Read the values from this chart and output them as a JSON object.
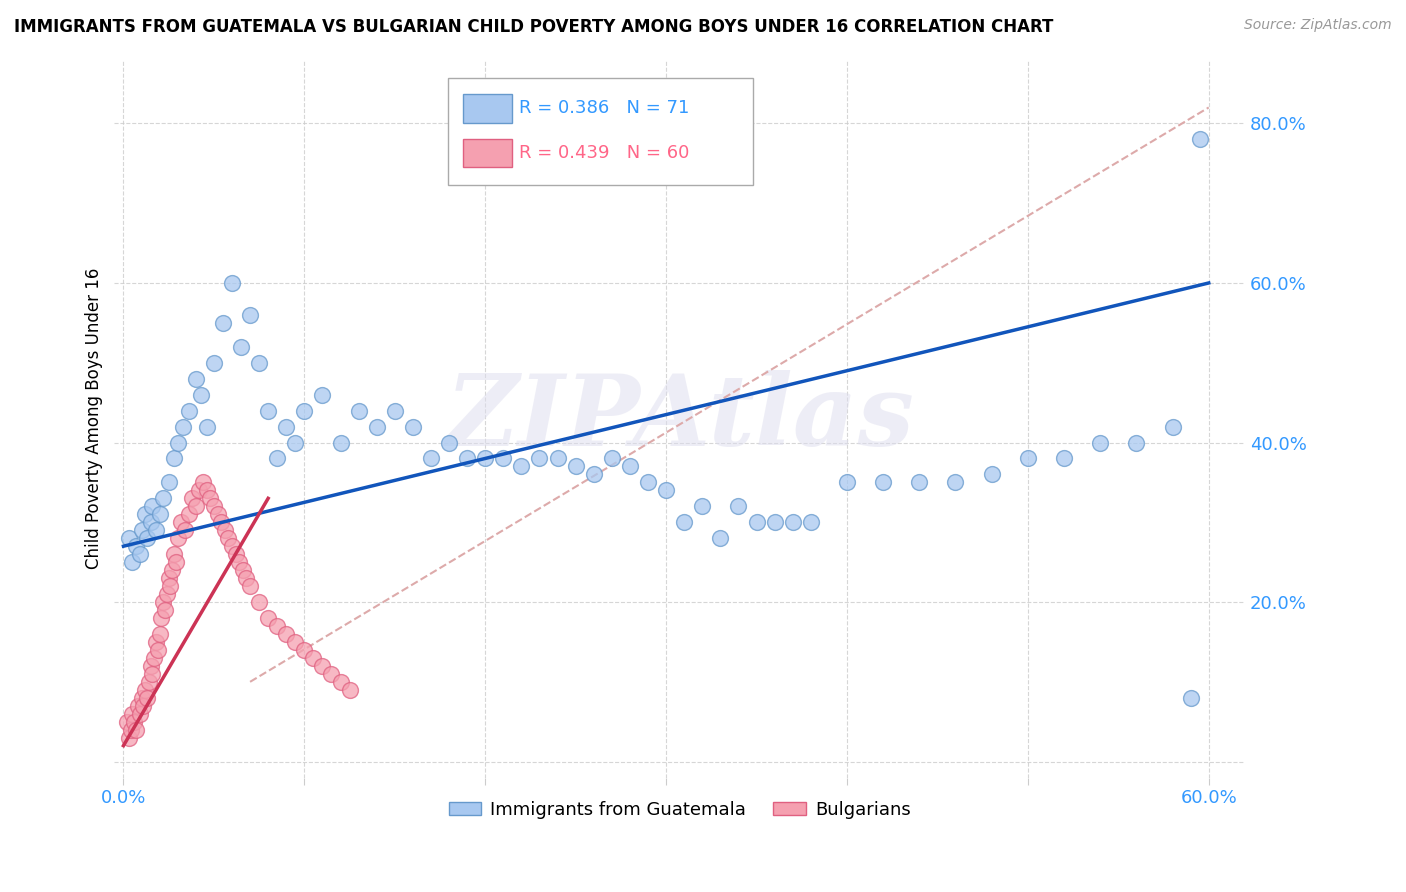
{
  "title": "IMMIGRANTS FROM GUATEMALA VS BULGARIAN CHILD POVERTY AMONG BOYS UNDER 16 CORRELATION CHART",
  "source": "Source: ZipAtlas.com",
  "ylabel": "Child Poverty Among Boys Under 16",
  "xlim": [
    -0.005,
    0.62
  ],
  "ylim": [
    -0.02,
    0.88
  ],
  "xtick_vals": [
    0.0,
    0.1,
    0.2,
    0.3,
    0.4,
    0.5,
    0.6
  ],
  "xticklabels": [
    "0.0%",
    "",
    "",
    "",
    "",
    "",
    "60.0%"
  ],
  "ytick_vals": [
    0.0,
    0.2,
    0.4,
    0.6,
    0.8
  ],
  "yticklabels": [
    "",
    "20.0%",
    "40.0%",
    "60.0%",
    "80.0%"
  ],
  "legend_blue_R": "R = 0.386",
  "legend_blue_N": "N = 71",
  "legend_pink_R": "R = 0.439",
  "legend_pink_N": "N = 60",
  "legend_blue_label": "Immigrants from Guatemala",
  "legend_pink_label": "Bulgarians",
  "watermark": "ZIPAtlas",
  "blue_color": "#A8C8F0",
  "blue_edge_color": "#6699CC",
  "pink_color": "#F5A0B0",
  "pink_edge_color": "#E06080",
  "trend_blue_color": "#1155BB",
  "trend_pink_color": "#CC3355",
  "trend_gray_color": "#DDAAAA",
  "blue_scatter_x": [
    0.003,
    0.005,
    0.007,
    0.009,
    0.01,
    0.012,
    0.013,
    0.015,
    0.016,
    0.018,
    0.02,
    0.022,
    0.025,
    0.028,
    0.03,
    0.033,
    0.036,
    0.04,
    0.043,
    0.046,
    0.05,
    0.055,
    0.06,
    0.065,
    0.07,
    0.075,
    0.08,
    0.085,
    0.09,
    0.095,
    0.1,
    0.11,
    0.12,
    0.13,
    0.14,
    0.15,
    0.16,
    0.17,
    0.18,
    0.19,
    0.2,
    0.21,
    0.22,
    0.23,
    0.24,
    0.25,
    0.26,
    0.27,
    0.28,
    0.29,
    0.3,
    0.31,
    0.32,
    0.33,
    0.34,
    0.35,
    0.36,
    0.37,
    0.38,
    0.4,
    0.42,
    0.44,
    0.46,
    0.48,
    0.5,
    0.52,
    0.54,
    0.56,
    0.58,
    0.59,
    0.595
  ],
  "blue_scatter_y": [
    0.28,
    0.25,
    0.27,
    0.26,
    0.29,
    0.31,
    0.28,
    0.3,
    0.32,
    0.29,
    0.31,
    0.33,
    0.35,
    0.38,
    0.4,
    0.42,
    0.44,
    0.48,
    0.46,
    0.42,
    0.5,
    0.55,
    0.6,
    0.52,
    0.56,
    0.5,
    0.44,
    0.38,
    0.42,
    0.4,
    0.44,
    0.46,
    0.4,
    0.44,
    0.42,
    0.44,
    0.42,
    0.38,
    0.4,
    0.38,
    0.38,
    0.38,
    0.37,
    0.38,
    0.38,
    0.37,
    0.36,
    0.38,
    0.37,
    0.35,
    0.34,
    0.3,
    0.32,
    0.28,
    0.32,
    0.3,
    0.3,
    0.3,
    0.3,
    0.35,
    0.35,
    0.35,
    0.35,
    0.36,
    0.38,
    0.38,
    0.4,
    0.4,
    0.42,
    0.08,
    0.78
  ],
  "pink_scatter_x": [
    0.002,
    0.003,
    0.004,
    0.005,
    0.006,
    0.007,
    0.008,
    0.009,
    0.01,
    0.011,
    0.012,
    0.013,
    0.014,
    0.015,
    0.016,
    0.017,
    0.018,
    0.019,
    0.02,
    0.021,
    0.022,
    0.023,
    0.024,
    0.025,
    0.026,
    0.027,
    0.028,
    0.029,
    0.03,
    0.032,
    0.034,
    0.036,
    0.038,
    0.04,
    0.042,
    0.044,
    0.046,
    0.048,
    0.05,
    0.052,
    0.054,
    0.056,
    0.058,
    0.06,
    0.062,
    0.064,
    0.066,
    0.068,
    0.07,
    0.075,
    0.08,
    0.085,
    0.09,
    0.095,
    0.1,
    0.105,
    0.11,
    0.115,
    0.12,
    0.125
  ],
  "pink_scatter_y": [
    0.05,
    0.03,
    0.04,
    0.06,
    0.05,
    0.04,
    0.07,
    0.06,
    0.08,
    0.07,
    0.09,
    0.08,
    0.1,
    0.12,
    0.11,
    0.13,
    0.15,
    0.14,
    0.16,
    0.18,
    0.2,
    0.19,
    0.21,
    0.23,
    0.22,
    0.24,
    0.26,
    0.25,
    0.28,
    0.3,
    0.29,
    0.31,
    0.33,
    0.32,
    0.34,
    0.35,
    0.34,
    0.33,
    0.32,
    0.31,
    0.3,
    0.29,
    0.28,
    0.27,
    0.26,
    0.25,
    0.24,
    0.23,
    0.22,
    0.2,
    0.18,
    0.17,
    0.16,
    0.15,
    0.14,
    0.13,
    0.12,
    0.11,
    0.1,
    0.09
  ],
  "blue_trend_x": [
    0.0,
    0.6
  ],
  "blue_trend_y": [
    0.27,
    0.6
  ],
  "pink_trend_x": [
    0.0,
    0.08
  ],
  "pink_trend_y": [
    0.02,
    0.33
  ],
  "gray_trend_x": [
    0.07,
    0.6
  ],
  "gray_trend_y": [
    0.1,
    0.82
  ],
  "title_fontsize": 12,
  "source_fontsize": 10,
  "tick_fontsize": 13,
  "ylabel_fontsize": 12
}
